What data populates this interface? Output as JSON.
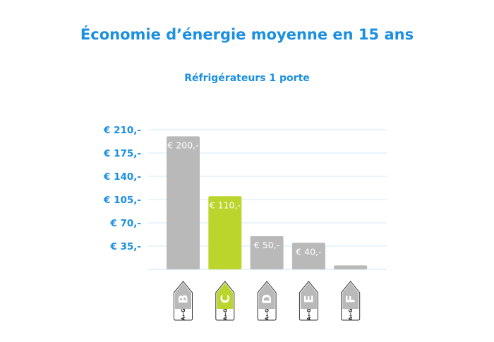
{
  "chart_data": {
    "type": "bar",
    "title": "Économie d’énergie moyenne en 15 ans",
    "subtitle": "Réfrigérateurs 1 porte",
    "categories": [
      "B",
      "C",
      "D",
      "E",
      "F"
    ],
    "category_scale_label": "A←G",
    "values": [
      200,
      110,
      50,
      40,
      6
    ],
    "data_labels": [
      "€ 200,-",
      "€ 110,-",
      "€ 50,-",
      "€ 40,-",
      ""
    ],
    "highlight_category": "C",
    "ylim": [
      0,
      210
    ],
    "yticks": [
      35,
      70,
      105,
      140,
      175,
      210
    ],
    "ytick_labels": [
      "€ 35,-",
      "€ 70,-",
      "€ 105,-",
      "€ 140,-",
      "€ 175,-",
      "€ 210,-"
    ],
    "grid": true,
    "xlabel": "",
    "ylabel": "",
    "colors": {
      "bar": "#b9b9b9",
      "highlight": "#bcd52c",
      "text": "#1b8fe0",
      "grid": "#dceefb"
    }
  }
}
